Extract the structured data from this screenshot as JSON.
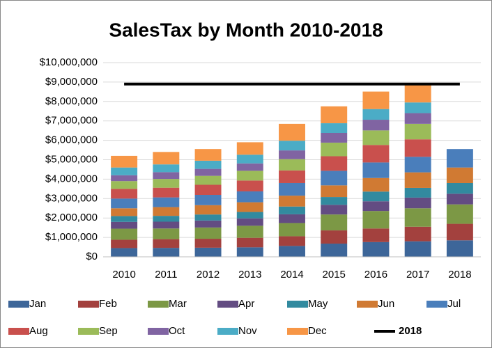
{
  "chart_data": {
    "type": "stacked_bar",
    "title": "SalesTax by Month 2010-2018",
    "categories": [
      "2010",
      "2011",
      "2012",
      "2013",
      "2014",
      "2015",
      "2016",
      "2017",
      "2018"
    ],
    "ylim": [
      0,
      10000000
    ],
    "yticks": [
      {
        "value": 0,
        "label": "$0"
      },
      {
        "value": 1000000,
        "label": "$1,000,000"
      },
      {
        "value": 2000000,
        "label": "$2,000,000"
      },
      {
        "value": 3000000,
        "label": "$3,000,000"
      },
      {
        "value": 4000000,
        "label": "$4,000,000"
      },
      {
        "value": 5000000,
        "label": "$5,000,000"
      },
      {
        "value": 6000000,
        "label": "$6,000,000"
      },
      {
        "value": 7000000,
        "label": "$7,000,000"
      },
      {
        "value": 8000000,
        "label": "$8,000,000"
      },
      {
        "value": 9000000,
        "label": "$9,000,000"
      },
      {
        "value": 10000000,
        "label": "$10,000,000"
      }
    ],
    "grid": true,
    "legend": "bottom",
    "series": [
      {
        "name": "Jan",
        "color": "#3d6699",
        "values": [
          450000,
          460000,
          470000,
          490000,
          560000,
          680000,
          760000,
          800000,
          850000
        ]
      },
      {
        "name": "Feb",
        "color": "#a3413e",
        "values": [
          430000,
          450000,
          460000,
          490000,
          500000,
          680000,
          700000,
          750000,
          850000
        ]
      },
      {
        "name": "Mar",
        "color": "#7c9845",
        "values": [
          570000,
          550000,
          580000,
          620000,
          680000,
          820000,
          900000,
          950000,
          1000000
        ]
      },
      {
        "name": "Apr",
        "color": "#634c82",
        "values": [
          350000,
          350000,
          360000,
          380000,
          450000,
          500000,
          500000,
          550000,
          550000
        ]
      },
      {
        "name": "May",
        "color": "#328a9f",
        "values": [
          300000,
          300000,
          310000,
          330000,
          400000,
          400000,
          500000,
          500000,
          550000
        ]
      },
      {
        "name": "Jun",
        "color": "#d07a33",
        "values": [
          400000,
          450000,
          480000,
          500000,
          560000,
          600000,
          700000,
          800000,
          800000
        ]
      },
      {
        "name": "Jul",
        "color": "#4a7ebb",
        "values": [
          500000,
          500000,
          530000,
          560000,
          650000,
          750000,
          800000,
          800000,
          950000
        ]
      },
      {
        "name": "Aug",
        "color": "#c9504d",
        "values": [
          500000,
          500000,
          520000,
          560000,
          650000,
          750000,
          900000,
          900000,
          null
        ]
      },
      {
        "name": "Sep",
        "color": "#9bbb59",
        "values": [
          400000,
          450000,
          460000,
          500000,
          580000,
          700000,
          750000,
          800000,
          null
        ]
      },
      {
        "name": "Oct",
        "color": "#8064a2",
        "values": [
          300000,
          350000,
          360000,
          380000,
          450000,
          500000,
          550000,
          550000,
          null
        ]
      },
      {
        "name": "Nov",
        "color": "#4bacc6",
        "values": [
          400000,
          400000,
          420000,
          450000,
          500000,
          500000,
          550000,
          550000,
          null
        ]
      },
      {
        "name": "Dec",
        "color": "#f79646",
        "values": [
          600000,
          640000,
          600000,
          640000,
          870000,
          870000,
          900000,
          950000,
          null
        ]
      },
      {
        "name": "2018",
        "type": "line",
        "color": "#000000",
        "legend_label_color": "#ff0000",
        "values": [
          8900000,
          8900000,
          8900000,
          8900000,
          8900000,
          8900000,
          8900000,
          8900000,
          8900000
        ]
      }
    ]
  }
}
